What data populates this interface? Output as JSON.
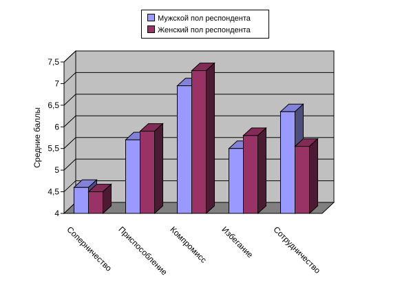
{
  "chart_data": {
    "type": "bar",
    "subtype": "3d-clustered-column",
    "categories": [
      "Соперничество",
      "Приспособление",
      "Компромисс",
      "Избегание",
      "Сотрудничество"
    ],
    "series": [
      {
        "name": "Мужской пол респондента",
        "values": [
          4.6,
          5.7,
          6.95,
          5.5,
          6.35
        ],
        "color": "#9999ff"
      },
      {
        "name": "Женский пол респондента",
        "values": [
          4.5,
          5.9,
          7.3,
          5.8,
          5.55
        ],
        "color": "#993366"
      }
    ],
    "ylabel": "Средние баллы",
    "ylim": [
      4,
      7.5
    ],
    "yticks": [
      "4",
      "4,5",
      "5",
      "5,5",
      "6",
      "6,5",
      "7",
      "7,5"
    ],
    "grid": true,
    "legend_position": "top",
    "colors": {
      "wall": "#c0c0c0",
      "floor": "#808080"
    }
  }
}
